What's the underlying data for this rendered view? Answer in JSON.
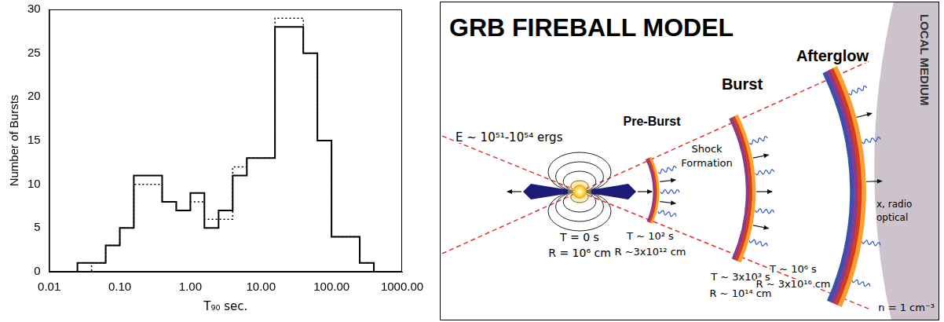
{
  "chart_data": {
    "type": "histogram",
    "bins": [
      0.01,
      0.0158,
      0.0251,
      0.0398,
      0.0631,
      0.1,
      0.158,
      0.251,
      0.398,
      0.631,
      1,
      1.58,
      2.51,
      3.98,
      6.31,
      10,
      15.8,
      25.1,
      39.8,
      63.1,
      100,
      158,
      251,
      398,
      631,
      1000
    ],
    "series": [
      {
        "color": "#000000",
        "line_style": "solid",
        "values": [
          0,
          0,
          1,
          1,
          3,
          5,
          11,
          11,
          8,
          7,
          9,
          5,
          7,
          11,
          13,
          13,
          28,
          28,
          25,
          15,
          4,
          4,
          1,
          0,
          0
        ]
      },
      {
        "color": "#000000",
        "line_style": "dotted",
        "values": [
          0,
          0,
          0,
          1,
          3,
          5,
          10,
          10,
          8,
          7,
          8,
          6,
          6,
          12,
          13,
          13,
          29,
          29,
          25,
          15,
          4,
          4,
          1,
          0,
          0
        ]
      }
    ],
    "x_label": "T₉₀ sec.",
    "y_label": "Number of Bursts",
    "log": "x",
    "xlim": [
      0.01,
      1000
    ],
    "xticks": [
      0.01,
      {
        "value": 0.1,
        "label": "0.10"
      },
      {
        "value": 1,
        "label": "1.00"
      },
      {
        "value": 10,
        "label": "10.00"
      },
      {
        "value": 100,
        "label": "100.00"
      },
      {
        "value": 1000,
        "label": "1000.00"
      }
    ],
    "ylim": [
      0,
      30
    ],
    "yticks": [
      0,
      5,
      10,
      15,
      20,
      25,
      30
    ],
    "grid": false
  },
  "diagram": {
    "title": "GRB FIREBALL MODEL",
    "source": {
      "energy": "E ~ 10⁵¹-10⁵⁴ ergs",
      "time": "T = 0 s",
      "radius": "R = 10⁶ cm"
    },
    "stages": [
      {
        "label": "Pre-Burst",
        "time": "T ~ 10² s",
        "radius": "R ~3x10¹² cm"
      },
      {
        "label": "Burst",
        "note": [
          "Shock",
          "Formation"
        ],
        "time": "T ~ 3x10³ s",
        "radius": "R ~ 10¹⁴ cm"
      },
      {
        "label": "Afterglow",
        "emission": [
          "x, radio",
          "optical"
        ],
        "time": "T ~ 10⁶ s",
        "radius": "R ~ 3x10¹⁶ cm"
      }
    ],
    "medium": {
      "label": "LOCAL MEDIUM",
      "density": "n = 1 cm⁻³"
    }
  }
}
